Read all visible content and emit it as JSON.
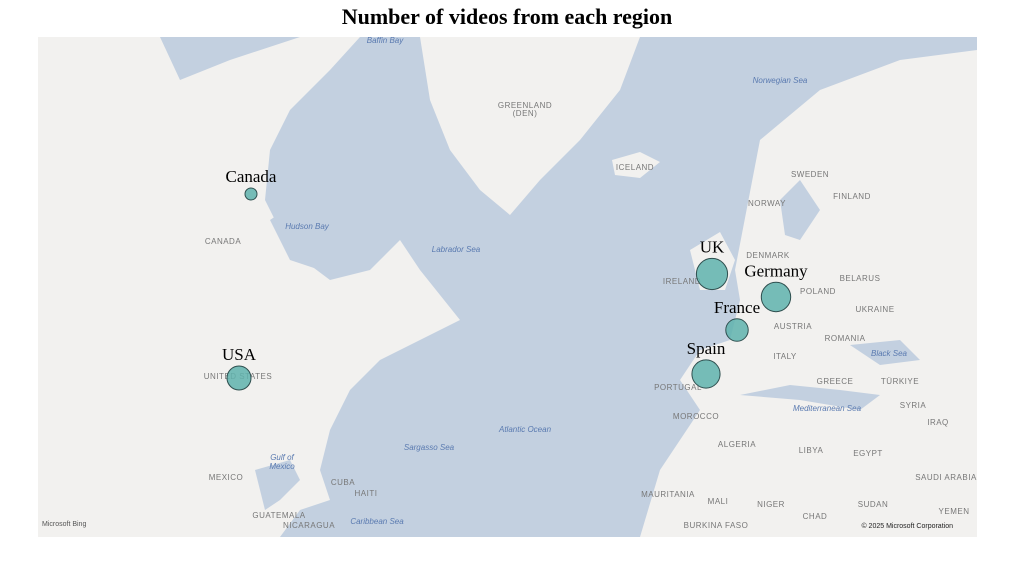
{
  "chart_data": {
    "type": "bubble-map",
    "title": "Number of videos from each region",
    "categories": [
      "Canada",
      "USA",
      "UK",
      "Germany",
      "France",
      "Spain"
    ],
    "values": [
      4,
      16,
      27,
      24,
      14,
      22
    ],
    "color": "#5fb3ad"
  },
  "map": {
    "labels": [
      "Baffin Bay",
      "GREENLAND",
      "(DEN)",
      "Norwegian Sea",
      "ICELAND",
      "SWEDEN",
      "NORWAY",
      "FINLAND",
      "Hudson Bay",
      "CANADA",
      "Labrador Sea",
      "DENMARK",
      "BELARUS",
      "POLAND",
      "UKRAINE",
      "IRELAND",
      "AUSTRIA",
      "ROMANIA",
      "ITALY",
      "Black Sea",
      "UNITED STATES",
      "PORTUGAL",
      "GREECE",
      "TÜRKIYE",
      "Mediterranean Sea",
      "MOROCCO",
      "SYRIA",
      "IRAQ",
      "Atlantic Ocean",
      "ALGERIA",
      "LIBYA",
      "EGYPT",
      "Sargasso Sea",
      "Gulf of",
      "Mexico",
      "MEXICO",
      "CUBA",
      "SAUDI ARABIA",
      "HAITI",
      "MAURITANIA",
      "MALI",
      "NIGER",
      "SUDAN",
      "YEMEN",
      "CHAD",
      "GUATEMALA",
      "NICARAGUA",
      "Caribbean Sea",
      "BURKINA FASO"
    ],
    "logo": "Microsoft Bing",
    "attribution": "© 2025 Microsoft Corporation"
  }
}
